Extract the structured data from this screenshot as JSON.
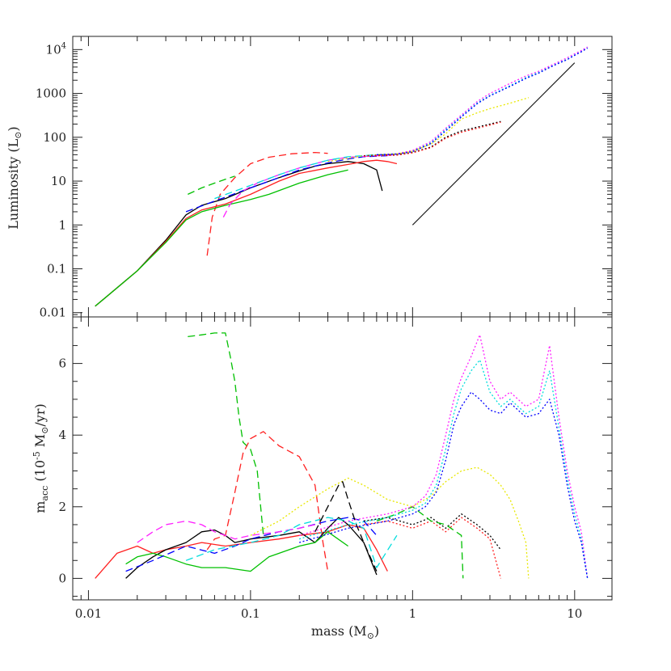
{
  "chart_data": [
    {
      "type": "line",
      "panel": "top",
      "ylabel": "Luminosity (L",
      "ylabel_sub": "⊙",
      "ylabel_close": ")",
      "xscale": "log",
      "yscale": "log",
      "xlim": [
        0.008,
        17
      ],
      "ylim": [
        0.008,
        20000
      ],
      "yticks": [
        {
          "value": 0.01,
          "label": "0.01"
        },
        {
          "value": 0.1,
          "label": "0.1"
        },
        {
          "value": 1,
          "label": "1"
        },
        {
          "value": 10,
          "label": "10"
        },
        {
          "value": 100,
          "label": "100"
        },
        {
          "value": 1000,
          "label": "1000"
        },
        {
          "value": 10000,
          "label": "10",
          "sup": "4"
        }
      ],
      "reference_line": {
        "x": [
          1,
          10
        ],
        "y": [
          1,
          5000
        ]
      },
      "series": [
        {
          "color": "#00c000",
          "dash": "dashed",
          "x": [
            0.041,
            0.05,
            0.06,
            0.07,
            0.08
          ],
          "y": [
            5,
            7,
            9,
            11,
            13
          ]
        },
        {
          "color": "#ff2020",
          "dash": "dashed",
          "x": [
            0.054,
            0.058,
            0.065,
            0.08,
            0.1,
            0.13,
            0.18,
            0.25,
            0.3
          ],
          "y": [
            0.2,
            1.5,
            5,
            12,
            25,
            35,
            42,
            45,
            43
          ]
        },
        {
          "color": "#000000",
          "dash": "solid",
          "x": [
            0.011,
            0.02,
            0.03,
            0.04,
            0.05,
            0.07,
            0.1,
            0.15,
            0.2,
            0.25,
            0.3,
            0.4,
            0.5,
            0.6,
            0.65
          ],
          "y": [
            0.014,
            0.09,
            0.45,
            1.7,
            2.8,
            4.0,
            7,
            12,
            17,
            22,
            25,
            28,
            25,
            18,
            6
          ]
        },
        {
          "color": "#ff2020",
          "dash": "solid",
          "x": [
            0.011,
            0.02,
            0.03,
            0.04,
            0.05,
            0.07,
            0.1,
            0.15,
            0.2,
            0.3,
            0.4,
            0.5,
            0.6,
            0.7,
            0.8
          ],
          "y": [
            0.014,
            0.09,
            0.42,
            1.4,
            2.2,
            3.0,
            5,
            10,
            15,
            20,
            24,
            28,
            30,
            28,
            25
          ]
        },
        {
          "color": "#00c000",
          "dash": "solid",
          "x": [
            0.011,
            0.02,
            0.03,
            0.04,
            0.05,
            0.07,
            0.1,
            0.13,
            0.2,
            0.3,
            0.4
          ],
          "y": [
            0.014,
            0.09,
            0.4,
            1.3,
            2.0,
            2.8,
            3.8,
            5,
            9,
            14,
            18
          ]
        },
        {
          "color": "#0000ff",
          "dash": "dashed",
          "x": [
            0.04,
            0.06,
            0.1,
            0.15,
            0.2,
            0.3,
            0.4,
            0.5,
            0.7
          ],
          "y": [
            2.0,
            3.5,
            7,
            12,
            18,
            26,
            32,
            36,
            38
          ]
        },
        {
          "color": "#ff20ff",
          "dash": "dashed",
          "x": [
            0.068,
            0.075,
            0.09,
            0.11,
            0.15,
            0.2,
            0.3,
            0.4,
            0.6,
            0.8
          ],
          "y": [
            1.5,
            3,
            6,
            9,
            14,
            20,
            30,
            35,
            38,
            40
          ]
        },
        {
          "color": "#00dddd",
          "dash": "dashed",
          "x": [
            0.06,
            0.1,
            0.15,
            0.2,
            0.3,
            0.4,
            0.6,
            0.8
          ],
          "y": [
            4,
            8,
            14,
            20,
            30,
            36,
            40,
            42
          ]
        },
        {
          "color": "#e8e800",
          "dash": "dotted",
          "x": [
            0.3,
            0.5,
            0.8,
            1.0,
            1.3,
            1.6,
            2,
            2.5,
            3,
            4,
            5.2
          ],
          "y": [
            28,
            38,
            42,
            48,
            70,
            120,
            260,
            360,
            450,
            600,
            800
          ]
        },
        {
          "color": "#000000",
          "dash": "dotted",
          "x": [
            0.5,
            0.8,
            1.0,
            1.3,
            1.6,
            2.0,
            2.5,
            3.0,
            3.5
          ],
          "y": [
            38,
            40,
            45,
            60,
            100,
            140,
            170,
            200,
            230
          ]
        },
        {
          "color": "#ff2020",
          "dash": "dotted",
          "x": [
            0.5,
            0.8,
            1.0,
            1.3,
            1.6,
            2.0,
            2.5,
            3.0,
            3.5
          ],
          "y": [
            37,
            39,
            44,
            58,
            95,
            130,
            160,
            190,
            220
          ]
        },
        {
          "color": "#00dddd",
          "dash": "dotted",
          "x": [
            0.6,
            0.8,
            1.0,
            1.3,
            1.6,
            2,
            2.5,
            3,
            4,
            5,
            6,
            7,
            8,
            9,
            10,
            11,
            12
          ],
          "y": [
            40,
            42,
            48,
            75,
            150,
            300,
            600,
            900,
            1500,
            2300,
            3000,
            4000,
            5000,
            6000,
            7500,
            9000,
            11000
          ]
        },
        {
          "color": "#ff20ff",
          "dash": "dotted",
          "x": [
            0.6,
            0.8,
            1.0,
            1.3,
            1.6,
            2,
            2.5,
            3,
            4,
            5,
            6,
            7,
            8,
            9,
            10,
            11,
            12
          ],
          "y": [
            40,
            42,
            50,
            80,
            160,
            320,
            650,
            1000,
            1700,
            2500,
            3200,
            4200,
            5300,
            6500,
            8000,
            9500,
            11500
          ]
        },
        {
          "color": "#0000ff",
          "dash": "dotted",
          "x": [
            0.6,
            0.8,
            1.0,
            1.3,
            1.6,
            2,
            2.5,
            3,
            4,
            5,
            6,
            7,
            8,
            9,
            10,
            11,
            12
          ],
          "y": [
            40,
            41,
            47,
            72,
            140,
            290,
            580,
            880,
            1450,
            2200,
            2900,
            3900,
            4900,
            5900,
            7400,
            8900,
            10800
          ]
        }
      ]
    },
    {
      "type": "line",
      "panel": "bottom",
      "xlabel": "mass (M",
      "xlabel_sub": "⊙",
      "xlabel_close": ")",
      "ylabel_pre": "m",
      "ylabel_sub": "acc",
      "ylabel_mid": " (10",
      "ylabel_sup": "-5",
      "ylabel_mid2": " M",
      "ylabel_sub2": "⊙",
      "ylabel_end": "/yr)",
      "xscale": "log",
      "yscale": "linear",
      "xlim": [
        0.008,
        17
      ],
      "ylim": [
        -0.6,
        7.3
      ],
      "xticks": [
        {
          "value": 0.01,
          "label": "0.01"
        },
        {
          "value": 0.1,
          "label": "0.1"
        },
        {
          "value": 1,
          "label": "1"
        },
        {
          "value": 10,
          "label": "10"
        }
      ],
      "yticks": [
        {
          "value": 0,
          "label": "0"
        },
        {
          "value": 2,
          "label": "2"
        },
        {
          "value": 4,
          "label": "4"
        },
        {
          "value": 6,
          "label": "6"
        }
      ],
      "series": [
        {
          "color": "#00c000",
          "dash": "dashed",
          "x": [
            0.041,
            0.05,
            0.06,
            0.07,
            0.075,
            0.08,
            0.085,
            0.09,
            0.1,
            0.11,
            0.12
          ],
          "y": [
            6.75,
            6.8,
            6.85,
            6.85,
            6.2,
            5.5,
            4.5,
            3.8,
            3.6,
            3.0,
            1.2
          ]
        },
        {
          "color": "#ff2020",
          "dash": "dashed",
          "x": [
            0.054,
            0.06,
            0.07,
            0.08,
            0.09,
            0.1,
            0.12,
            0.15,
            0.2,
            0.25,
            0.28,
            0.3
          ],
          "y": [
            0.8,
            1.1,
            1.2,
            2.4,
            3.5,
            3.9,
            4.1,
            3.7,
            3.4,
            2.6,
            1.0,
            0.2
          ]
        },
        {
          "color": "#ff2020",
          "dash": "solid",
          "x": [
            0.011,
            0.015,
            0.02,
            0.025,
            0.03,
            0.04,
            0.05,
            0.07,
            0.1,
            0.15,
            0.2,
            0.3,
            0.4,
            0.5,
            0.6,
            0.7
          ],
          "y": [
            0,
            0.7,
            0.9,
            0.7,
            0.8,
            0.9,
            1.0,
            0.9,
            1.0,
            1.1,
            1.2,
            1.3,
            1.5,
            1.4,
            0.8,
            0.2
          ]
        },
        {
          "color": "#000000",
          "dash": "solid",
          "x": [
            0.017,
            0.02,
            0.025,
            0.03,
            0.04,
            0.05,
            0.06,
            0.07,
            0.08,
            0.1,
            0.15,
            0.2,
            0.25,
            0.3,
            0.35,
            0.4,
            0.5,
            0.6
          ],
          "y": [
            0,
            0.3,
            0.6,
            0.8,
            1.0,
            1.3,
            1.35,
            1.2,
            1.0,
            1.1,
            1.2,
            1.3,
            1.0,
            1.4,
            1.7,
            1.5,
            1.0,
            0.1
          ]
        },
        {
          "color": "#00c000",
          "dash": "solid",
          "x": [
            0.017,
            0.02,
            0.025,
            0.03,
            0.04,
            0.05,
            0.07,
            0.1,
            0.13,
            0.15,
            0.2,
            0.25,
            0.3,
            0.4
          ],
          "y": [
            0.4,
            0.6,
            0.7,
            0.6,
            0.4,
            0.3,
            0.3,
            0.2,
            0.6,
            0.7,
            0.9,
            1.0,
            1.3,
            0.9
          ]
        },
        {
          "color": "#0000ff",
          "dash": "dashed",
          "x": [
            0.017,
            0.025,
            0.04,
            0.06,
            0.08,
            0.1,
            0.15,
            0.2,
            0.3,
            0.4,
            0.5,
            0.6
          ],
          "y": [
            0.2,
            0.5,
            0.9,
            0.7,
            0.9,
            1.1,
            1.3,
            1.4,
            1.6,
            1.7,
            1.6,
            1.2
          ]
        },
        {
          "color": "#ff20ff",
          "dash": "dashed",
          "x": [
            0.02,
            0.025,
            0.03,
            0.04,
            0.05,
            0.06,
            0.07,
            0.08,
            0.1,
            0.15,
            0.2,
            0.25
          ],
          "y": [
            1.0,
            1.3,
            1.5,
            1.6,
            1.5,
            1.3,
            1.2,
            1.1,
            1.2,
            1.3,
            1.4,
            1.5
          ]
        },
        {
          "color": "#00dddd",
          "dash": "dashed",
          "x": [
            0.04,
            0.06,
            0.1,
            0.15,
            0.2,
            0.3,
            0.4,
            0.5,
            0.6,
            0.8
          ],
          "y": [
            0.5,
            0.8,
            1.0,
            1.2,
            1.5,
            1.7,
            1.6,
            1.4,
            0.3,
            1.2
          ]
        },
        {
          "color": "#e8e800",
          "dash": "dotted",
          "x": [
            0.1,
            0.15,
            0.2,
            0.3,
            0.4,
            0.5,
            0.7,
            1.0,
            1.3,
            1.6,
            2.0,
            2.5,
            3.0,
            3.5,
            4.0,
            4.5,
            5.0,
            5.2
          ],
          "y": [
            1.2,
            1.6,
            2.0,
            2.5,
            2.8,
            2.6,
            2.2,
            2.0,
            2.3,
            2.7,
            3.0,
            3.1,
            2.9,
            2.6,
            2.2,
            1.6,
            1.0,
            0
          ]
        },
        {
          "color": "#000000",
          "dash": "dashed",
          "x": [
            0.25,
            0.3,
            0.35,
            0.37,
            0.4,
            0.45,
            0.5,
            0.6
          ],
          "y": [
            1.3,
            2.0,
            2.6,
            2.7,
            2.2,
            1.5,
            1.0,
            0.2
          ]
        },
        {
          "color": "#000000",
          "dash": "dotted",
          "x": [
            0.5,
            0.7,
            1.0,
            1.3,
            1.6,
            2.0,
            2.5,
            3.0,
            3.5
          ],
          "y": [
            1.6,
            1.7,
            1.5,
            1.7,
            1.4,
            1.8,
            1.5,
            1.2,
            0.8
          ]
        },
        {
          "color": "#ff2020",
          "dash": "dotted",
          "x": [
            0.5,
            0.7,
            1.0,
            1.3,
            1.6,
            2.0,
            2.5,
            3.0,
            3.5
          ],
          "y": [
            1.5,
            1.6,
            1.4,
            1.6,
            1.3,
            1.7,
            1.4,
            1.1,
            0
          ]
        },
        {
          "color": "#00c000",
          "dash": "dashed",
          "x": [
            0.6,
            0.8,
            1.0,
            1.3,
            1.6,
            2.0,
            2.05
          ],
          "y": [
            1.6,
            1.8,
            2.0,
            1.6,
            1.5,
            1.2,
            0
          ]
        },
        {
          "color": "#ff20ff",
          "dash": "dotted",
          "x": [
            0.2,
            0.4,
            0.7,
            1.0,
            1.2,
            1.4,
            1.6,
            1.8,
            2.0,
            2.3,
            2.6,
            3.0,
            3.5,
            4.0,
            5.0,
            6.0,
            7.0,
            8.0,
            9.0,
            10.0,
            11.0,
            12.0
          ],
          "y": [
            1.2,
            1.6,
            1.8,
            2.0,
            2.3,
            2.9,
            4.0,
            5.0,
            5.6,
            6.2,
            6.8,
            5.5,
            5.0,
            5.2,
            4.8,
            5.0,
            6.5,
            4.5,
            3.0,
            2.0,
            1.3,
            0
          ]
        },
        {
          "color": "#00dddd",
          "dash": "dotted",
          "x": [
            0.2,
            0.4,
            0.7,
            1.0,
            1.2,
            1.4,
            1.6,
            1.8,
            2.0,
            2.3,
            2.6,
            3.0,
            3.5,
            4.0,
            5.0,
            6.0,
            7.0,
            8.0,
            9.0,
            10.0,
            11.0,
            12.0
          ],
          "y": [
            1.1,
            1.5,
            1.7,
            1.9,
            2.1,
            2.6,
            3.6,
            4.6,
            5.3,
            5.8,
            6.1,
            5.2,
            4.8,
            5.0,
            4.6,
            4.8,
            5.8,
            4.2,
            2.8,
            1.8,
            1.1,
            0
          ]
        },
        {
          "color": "#0000ff",
          "dash": "dotted",
          "x": [
            0.2,
            0.4,
            0.7,
            1.0,
            1.2,
            1.4,
            1.6,
            1.8,
            2.0,
            2.3,
            2.6,
            3.0,
            3.5,
            4.0,
            5.0,
            6.0,
            7.0,
            8.0,
            9.0,
            10.0,
            11.0,
            12.0
          ],
          "y": [
            1.0,
            1.4,
            1.6,
            1.8,
            2.0,
            2.4,
            3.3,
            4.3,
            4.8,
            5.2,
            5.0,
            4.7,
            4.6,
            4.9,
            4.5,
            4.6,
            5.0,
            4.0,
            2.6,
            1.6,
            1.0,
            0
          ]
        }
      ]
    }
  ]
}
